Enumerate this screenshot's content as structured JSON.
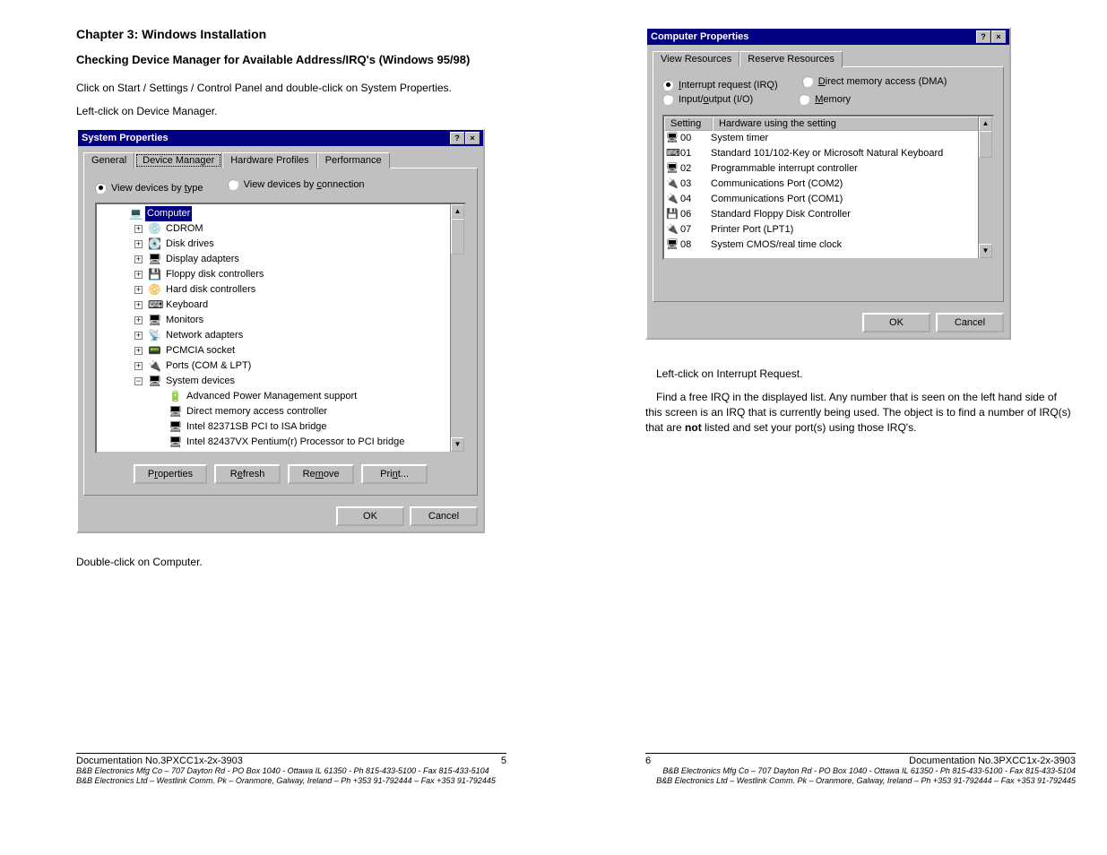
{
  "left": {
    "chapter": "Chapter 3:  Windows Installation",
    "section": "Checking Device Manager for Available Address/IRQ's (Windows 95/98)",
    "p1": "Click on Start / Settings / Control Panel and double-click on System Properties.",
    "p2": "Left-click on Device Manager.",
    "p3": "Double-click on Computer.",
    "dialog": {
      "title": "System Properties",
      "tabs": [
        "General",
        "Device Manager",
        "Hardware Profiles",
        "Performance"
      ],
      "radio1": "View devices by type",
      "radio2": "View devices by connection",
      "tree": [
        {
          "indent": 1,
          "exp": "",
          "icon": "💻",
          "label": "Computer",
          "selected": true
        },
        {
          "indent": 2,
          "exp": "+",
          "icon": "💿",
          "label": "CDROM"
        },
        {
          "indent": 2,
          "exp": "+",
          "icon": "💽",
          "label": "Disk drives"
        },
        {
          "indent": 2,
          "exp": "+",
          "icon": "🖥",
          "label": "Display adapters"
        },
        {
          "indent": 2,
          "exp": "+",
          "icon": "💾",
          "label": "Floppy disk controllers"
        },
        {
          "indent": 2,
          "exp": "+",
          "icon": "📀",
          "label": "Hard disk controllers"
        },
        {
          "indent": 2,
          "exp": "+",
          "icon": "⌨",
          "label": "Keyboard"
        },
        {
          "indent": 2,
          "exp": "+",
          "icon": "🖥",
          "label": "Monitors"
        },
        {
          "indent": 2,
          "exp": "+",
          "icon": "📡",
          "label": "Network adapters"
        },
        {
          "indent": 2,
          "exp": "+",
          "icon": "📟",
          "label": "PCMCIA socket"
        },
        {
          "indent": 2,
          "exp": "+",
          "icon": "🔌",
          "label": "Ports (COM & LPT)"
        },
        {
          "indent": 2,
          "exp": "−",
          "icon": "🖥",
          "label": "System devices"
        },
        {
          "indent": 3,
          "exp": "",
          "icon": "🔋",
          "label": "Advanced Power Management support"
        },
        {
          "indent": 3,
          "exp": "",
          "icon": "🖥",
          "label": "Direct memory access controller"
        },
        {
          "indent": 3,
          "exp": "",
          "icon": "🖥",
          "label": "Intel 82371SB PCI to ISA bridge"
        },
        {
          "indent": 3,
          "exp": "",
          "icon": "🖥",
          "label": "Intel 82437VX Pentium(r) Processor to PCI bridge"
        }
      ],
      "buttons": [
        "Properties",
        "Refresh",
        "Remove",
        "Print..."
      ],
      "ok": "OK",
      "cancel": "Cancel"
    }
  },
  "right": {
    "dialog": {
      "title": "Computer Properties",
      "tabs": [
        "View Resources",
        "Reserve Resources"
      ],
      "radios": {
        "irq": "Interrupt request (IRQ)",
        "dma": "Direct memory access (DMA)",
        "io": "Input/output (I/O)",
        "mem": "Memory"
      },
      "head_setting": "Setting",
      "head_hw": "Hardware using the setting",
      "rows": [
        {
          "icon": "🖥",
          "s": "00",
          "t": "System timer"
        },
        {
          "icon": "⌨",
          "s": "01",
          "t": "Standard 101/102-Key or Microsoft Natural Keyboard"
        },
        {
          "icon": "🖥",
          "s": "02",
          "t": "Programmable interrupt controller"
        },
        {
          "icon": "🔌",
          "s": "03",
          "t": "Communications Port (COM2)"
        },
        {
          "icon": "🔌",
          "s": "04",
          "t": "Communications Port (COM1)"
        },
        {
          "icon": "💾",
          "s": "06",
          "t": "Standard Floppy Disk Controller"
        },
        {
          "icon": "🔌",
          "s": "07",
          "t": "Printer Port (LPT1)"
        },
        {
          "icon": "🖥",
          "s": "08",
          "t": "System CMOS/real time clock"
        }
      ],
      "ok": "OK",
      "cancel": "Cancel"
    },
    "p1": "Left-click on Interrupt Request.",
    "p2_a": "Find a free IRQ in the displayed list. Any number that is seen on the left hand side of this screen is an IRQ that is currently being used. The object is to find a number of IRQ(s) that are ",
    "p2_b": "not",
    "p2_c": " listed and set your port(s) using those IRQ's."
  },
  "footer": {
    "doc": "Documentation No.3PXCC1x-2x-3903",
    "page_left": "5",
    "page_right": "6",
    "line1": "B&B Electronics Mfg Co – 707 Dayton Rd - PO Box 1040 - Ottawa IL 61350 - Ph 815-433-5100 - Fax 815-433-5104",
    "line2": "B&B Electronics Ltd – Westlink Comm. Pk – Oranmore, Galway, Ireland – Ph +353 91-792444 – Fax +353 91-792445"
  },
  "colors": {
    "titlebar": "#000080",
    "face": "#c0c0c0",
    "highlight": "#000080"
  }
}
